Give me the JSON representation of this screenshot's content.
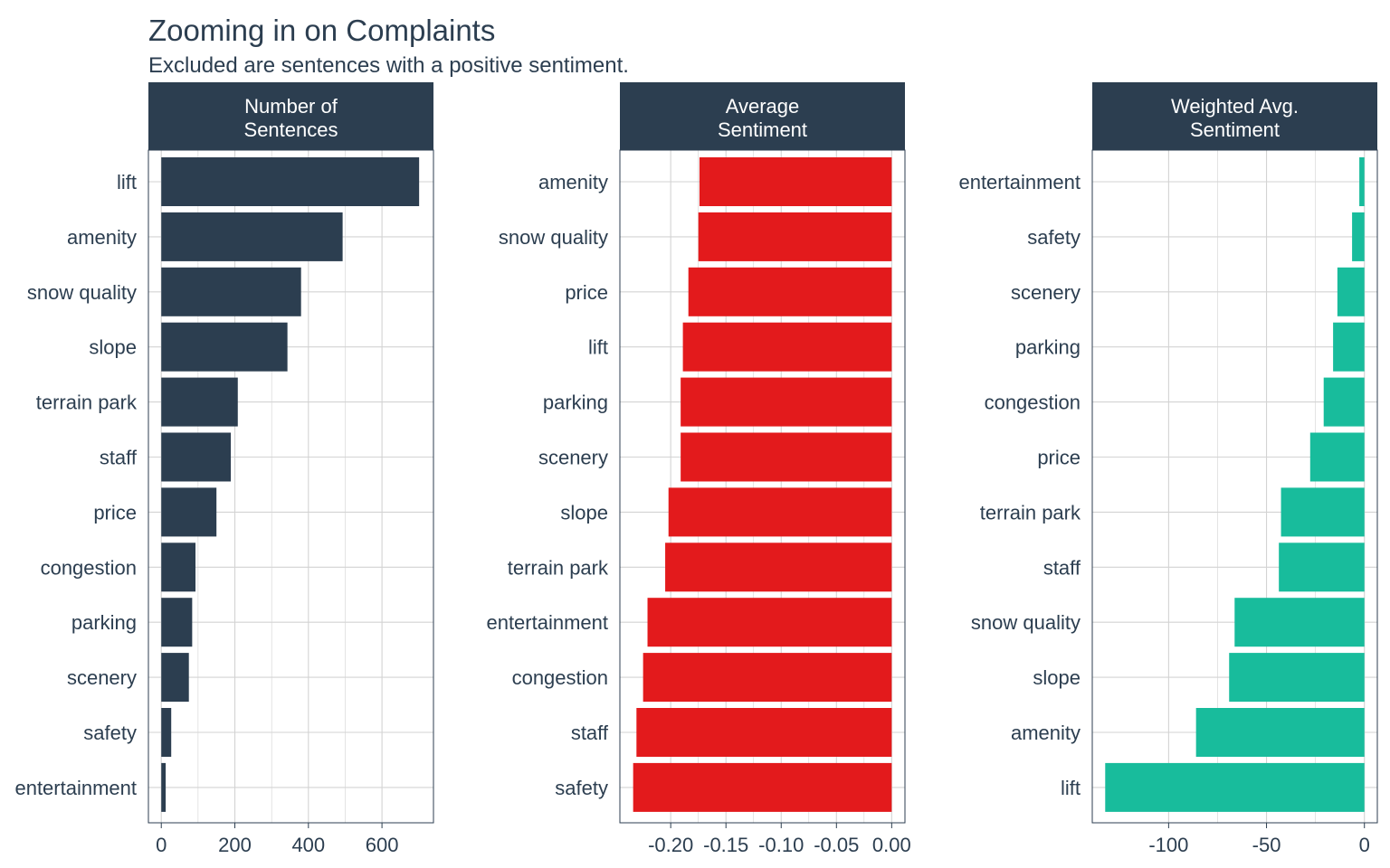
{
  "title": "Zooming in on Complaints",
  "subtitle": "Excluded are sentences with a positive sentiment.",
  "colors": {
    "text": "#2c3e50",
    "strip": "#2c3e50",
    "grid": "#d3d3d3",
    "border": "#2c3e50"
  },
  "chart_data": [
    {
      "type": "bar",
      "orientation": "horizontal",
      "strip": [
        "Number of",
        "Sentences"
      ],
      "color": "#2c3e50",
      "categories": [
        "lift",
        "amenity",
        "snow quality",
        "slope",
        "terrain park",
        "staff",
        "price",
        "congestion",
        "parking",
        "scenery",
        "safety",
        "entertainment"
      ],
      "values": [
        701,
        493,
        380,
        343,
        208,
        189,
        150,
        93,
        84,
        75,
        27,
        12
      ],
      "xlim": [
        -35,
        740
      ],
      "ticks": [
        0,
        200,
        400,
        600
      ],
      "tick_labels": [
        "0",
        "200",
        "400",
        "600"
      ],
      "grid": true
    },
    {
      "type": "bar",
      "orientation": "horizontal",
      "strip": [
        "Average",
        "Sentiment"
      ],
      "color": "#e31a1c",
      "categories": [
        "amenity",
        "snow quality",
        "price",
        "lift",
        "parking",
        "scenery",
        "slope",
        "terrain park",
        "entertainment",
        "congestion",
        "staff",
        "safety"
      ],
      "values": [
        -0.174,
        -0.175,
        -0.184,
        -0.189,
        -0.191,
        -0.191,
        -0.202,
        -0.205,
        -0.221,
        -0.225,
        -0.231,
        -0.234
      ],
      "xlim": [
        -0.246,
        0.012
      ],
      "ticks": [
        -0.2,
        -0.15,
        -0.1,
        -0.05,
        0
      ],
      "tick_labels": [
        "-0.20",
        "-0.15",
        "-0.10",
        "-0.05",
        "0.00"
      ],
      "grid": true
    },
    {
      "type": "bar",
      "orientation": "horizontal",
      "strip": [
        "Weighted Avg.",
        "Sentiment"
      ],
      "color": "#18bc9c",
      "categories": [
        "entertainment",
        "safety",
        "scenery",
        "parking",
        "congestion",
        "price",
        "terrain park",
        "staff",
        "snow quality",
        "slope",
        "amenity",
        "lift"
      ],
      "values": [
        -2.6,
        -6.3,
        -13.8,
        -16.0,
        -20.8,
        -27.7,
        -42.6,
        -43.7,
        -66.3,
        -69.1,
        -86.0,
        -132.4
      ],
      "xlim": [
        -139.0,
        6.6
      ],
      "ticks": [
        -100,
        -50,
        0
      ],
      "tick_labels": [
        "-100",
        "-50",
        "0"
      ],
      "grid": true
    }
  ]
}
